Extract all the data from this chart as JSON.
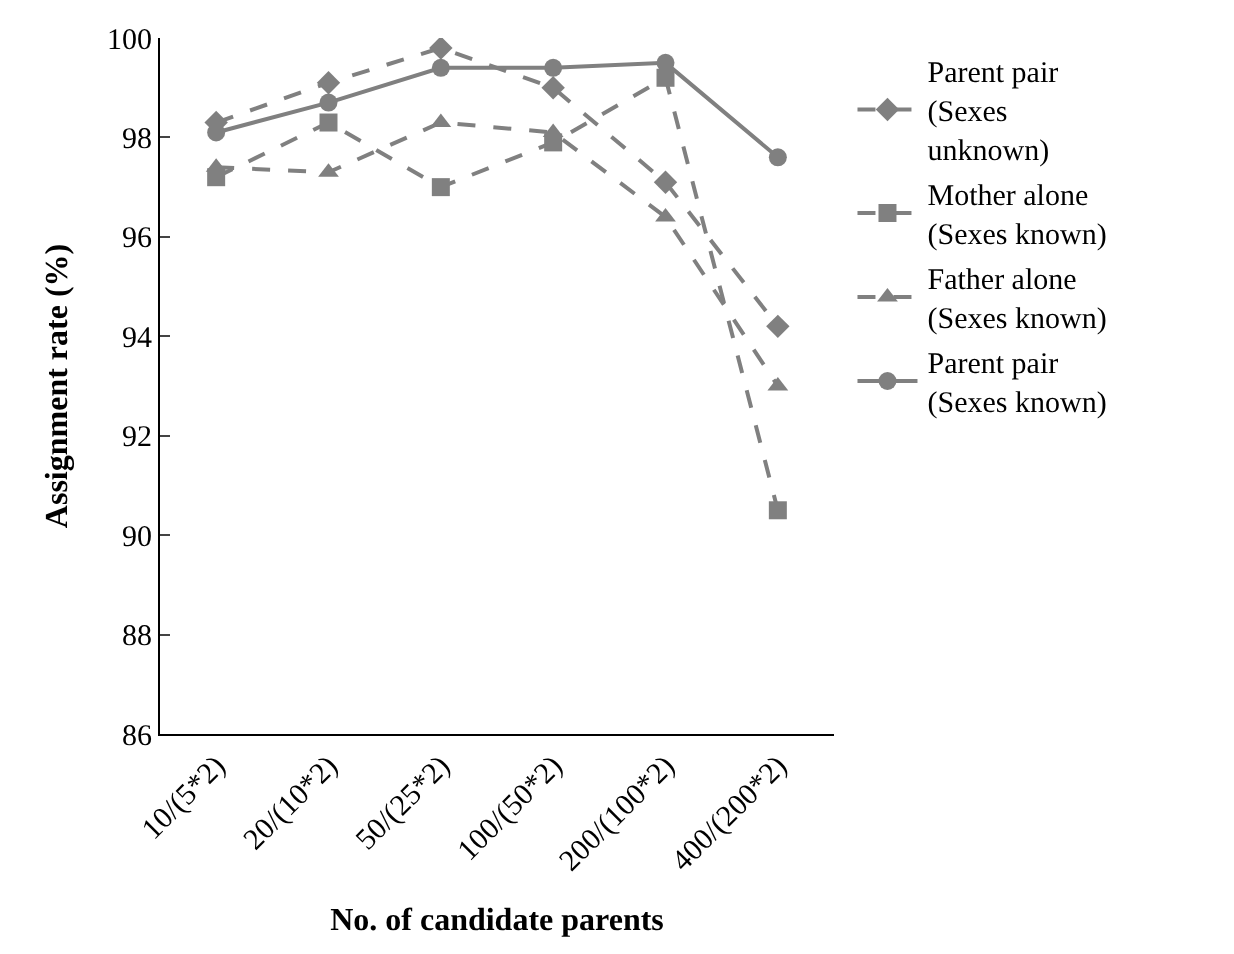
{
  "chart_data": {
    "type": "line",
    "xlabel": "No. of candidate parents",
    "ylabel": "Assignment rate (%)",
    "categories": [
      "10/(5*2)",
      "20/(10*2)",
      "50/(25*2)",
      "100/(50*2)",
      "200/(100*2)",
      "400/(200*2)"
    ],
    "series": [
      {
        "name": " Parent pair (Sexes unknown)",
        "color": "#808080",
        "marker": "diamond",
        "line_style": "dashed",
        "values": [
          98.3,
          99.1,
          99.8,
          99.0,
          97.1,
          94.2
        ]
      },
      {
        "name": "Mother alone (Sexes known)",
        "color": "#808080",
        "marker": "square",
        "line_style": "dashed",
        "values": [
          97.2,
          98.3,
          97.0,
          97.9,
          99.2,
          90.5
        ]
      },
      {
        "name": "Father alone (Sexes known)",
        "color": "#808080",
        "marker": "triangle",
        "line_style": "dashed",
        "values": [
          97.4,
          97.3,
          98.3,
          98.1,
          96.4,
          93.0
        ]
      },
      {
        "name": "Parent pair (Sexes known)",
        "color": "#808080",
        "marker": "circle",
        "line_style": "solid",
        "values": [
          98.1,
          98.7,
          99.4,
          99.4,
          99.5,
          97.6
        ]
      }
    ],
    "ylim": [
      86,
      100
    ],
    "yticks": [
      86,
      88,
      90,
      92,
      94,
      96,
      98,
      100
    ],
    "legend": "right"
  }
}
